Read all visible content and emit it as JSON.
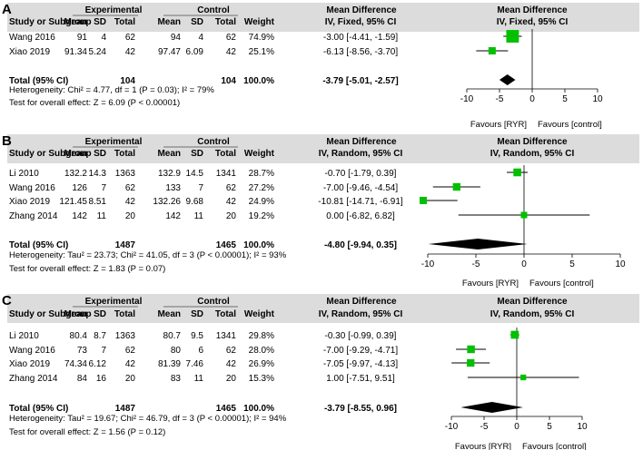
{
  "chart_data": [
    {
      "type": "forest",
      "panel_label": "A",
      "model": "Fixed",
      "headers": {
        "study": "Study or Subgroup",
        "group_exp": "Experimental",
        "group_ctl": "Control",
        "mean": "Mean",
        "sd": "SD",
        "total": "Total",
        "weight": "Weight",
        "md_title": "Mean Difference",
        "md_sub": "IV, Fixed, 95% CI",
        "plot_title": "Mean Difference",
        "plot_sub": "IV, Fixed, 95% CI"
      },
      "studies": [
        {
          "name": "Wang 2016",
          "exp_mean": "91",
          "exp_sd": "4",
          "exp_total": "62",
          "ctl_mean": "94",
          "ctl_sd": "4",
          "ctl_total": "62",
          "weight": "74.9%",
          "ci_text": "-3.00 [-4.41, -1.59]",
          "md": -3.0,
          "lo": -4.41,
          "hi": -1.59,
          "w": 74.9
        },
        {
          "name": "Xiao 2019",
          "exp_mean": "91.34",
          "exp_sd": "5.24",
          "exp_total": "42",
          "ctl_mean": "97.47",
          "ctl_sd": "6.09",
          "ctl_total": "42",
          "weight": "25.1%",
          "ci_text": "-6.13 [-8.56, -3.70]",
          "md": -6.13,
          "lo": -8.56,
          "hi": -3.7,
          "w": 25.1
        }
      ],
      "total": {
        "label": "Total (95% CI)",
        "exp_total": "104",
        "ctl_total": "104",
        "weight": "100.0%",
        "ci_text": "-3.79 [-5.01, -2.57]",
        "md": -3.79,
        "lo": -5.01,
        "hi": -2.57
      },
      "heterogeneity": "Heterogeneity: Chi² = 4.77, df = 1 (P = 0.03); I² = 79%",
      "overall_test": "Test for overall effect: Z = 6.09 (P < 0.00001)",
      "axis": {
        "min": -10,
        "max": 10,
        "ticks": [
          -10,
          -5,
          0,
          5,
          10
        ],
        "tick_labels": [
          "-10",
          "-5",
          "0",
          "5",
          "10"
        ]
      },
      "favours_left": "Favours [RYR]",
      "favours_right": "Favours [control]"
    },
    {
      "type": "forest",
      "panel_label": "B",
      "model": "Random",
      "headers": {
        "study": "Study or Subgroup",
        "group_exp": "Experimental",
        "group_ctl": "Control",
        "mean": "Mean",
        "sd": "SD",
        "total": "Total",
        "weight": "Weight",
        "md_title": "Mean Difference",
        "md_sub": "IV, Random, 95% CI",
        "plot_title": "Mean Difference",
        "plot_sub": "IV, Random, 95% CI"
      },
      "studies": [
        {
          "name": "Li 2010",
          "exp_mean": "132.2",
          "exp_sd": "14.3",
          "exp_total": "1363",
          "ctl_mean": "132.9",
          "ctl_sd": "14.5",
          "ctl_total": "1341",
          "weight": "28.7%",
          "ci_text": "-0.70 [-1.79, 0.39]",
          "md": -0.7,
          "lo": -1.79,
          "hi": 0.39,
          "w": 28.7
        },
        {
          "name": "Wang 2016",
          "exp_mean": "126",
          "exp_sd": "7",
          "exp_total": "62",
          "ctl_mean": "133",
          "ctl_sd": "7",
          "ctl_total": "62",
          "weight": "27.2%",
          "ci_text": "-7.00 [-9.46, -4.54]",
          "md": -7.0,
          "lo": -9.46,
          "hi": -4.54,
          "w": 27.2
        },
        {
          "name": "Xiao 2019",
          "exp_mean": "121.45",
          "exp_sd": "8.51",
          "exp_total": "42",
          "ctl_mean": "132.26",
          "ctl_sd": "9.68",
          "ctl_total": "42",
          "weight": "24.9%",
          "ci_text": "-10.81 [-14.71, -6.91]",
          "md": -10.81,
          "lo": -14.71,
          "hi": -6.91,
          "w": 24.9
        },
        {
          "name": "Zhang 2014",
          "exp_mean": "142",
          "exp_sd": "11",
          "exp_total": "20",
          "ctl_mean": "142",
          "ctl_sd": "11",
          "ctl_total": "20",
          "weight": "19.2%",
          "ci_text": "0.00 [-6.82, 6.82]",
          "md": 0.0,
          "lo": -6.82,
          "hi": 6.82,
          "w": 19.2
        }
      ],
      "total": {
        "label": "Total (95% CI)",
        "exp_total": "1487",
        "ctl_total": "1465",
        "weight": "100.0%",
        "ci_text": "-4.80 [-9.94, 0.35]",
        "md": -4.8,
        "lo": -9.94,
        "hi": 0.35
      },
      "heterogeneity": "Heterogeneity: Tau² = 23.73; Chi² = 41.05, df = 3 (P < 0.00001); I² = 93%",
      "overall_test": "Test for overall effect: Z = 1.83 (P = 0.07)",
      "axis": {
        "min": -10,
        "max": 10,
        "ticks": [
          -10,
          -5,
          0,
          5,
          10
        ],
        "tick_labels": [
          "-10",
          "-5",
          "0",
          "5",
          "10"
        ]
      },
      "favours_left": "Favours [RYR]",
      "favours_right": "Favours [control]"
    },
    {
      "type": "forest",
      "panel_label": "C",
      "model": "Random",
      "headers": {
        "study": "Study or Subgroup",
        "group_exp": "Experimental",
        "group_ctl": "Control",
        "mean": "Mean",
        "sd": "SD",
        "total": "Total",
        "weight": "Weight",
        "md_title": "Mean Difference",
        "md_sub": "IV, Random, 95% CI",
        "plot_title": "Mean Difference",
        "plot_sub": "IV, Random, 95% CI"
      },
      "studies": [
        {
          "name": "Li 2010",
          "exp_mean": "80.4",
          "exp_sd": "8.7",
          "exp_total": "1363",
          "ctl_mean": "80.7",
          "ctl_sd": "9.5",
          "ctl_total": "1341",
          "weight": "29.8%",
          "ci_text": "-0.30 [-0.99, 0.39]",
          "md": -0.3,
          "lo": -0.99,
          "hi": 0.39,
          "w": 29.8
        },
        {
          "name": "Wang 2016",
          "exp_mean": "73",
          "exp_sd": "7",
          "exp_total": "62",
          "ctl_mean": "80",
          "ctl_sd": "6",
          "ctl_total": "62",
          "weight": "28.0%",
          "ci_text": "-7.00 [-9.29, -4.71]",
          "md": -7.0,
          "lo": -9.29,
          "hi": -4.71,
          "w": 28.0
        },
        {
          "name": "Xiao 2019",
          "exp_mean": "74.34",
          "exp_sd": "6.12",
          "exp_total": "42",
          "ctl_mean": "81.39",
          "ctl_sd": "7.46",
          "ctl_total": "42",
          "weight": "26.9%",
          "ci_text": "-7.05 [-9.97, -4.13]",
          "md": -7.05,
          "lo": -9.97,
          "hi": -4.13,
          "w": 26.9
        },
        {
          "name": "Zhang 2014",
          "exp_mean": "84",
          "exp_sd": "16",
          "exp_total": "20",
          "ctl_mean": "83",
          "ctl_sd": "11",
          "ctl_total": "20",
          "weight": "15.3%",
          "ci_text": "1.00 [-7.51, 9.51]",
          "md": 1.0,
          "lo": -7.51,
          "hi": 9.51,
          "w": 15.3
        }
      ],
      "total": {
        "label": "Total (95% CI)",
        "exp_total": "1487",
        "ctl_total": "1465",
        "weight": "100.0%",
        "ci_text": "-3.79 [-8.55, 0.96]",
        "md": -3.79,
        "lo": -8.55,
        "hi": 0.96
      },
      "heterogeneity": "Heterogeneity: Tau² = 19.67; Chi² = 46.79, df = 3 (P < 0.00001); I² = 94%",
      "overall_test": "Test for overall effect: Z = 1.56 (P = 0.12)",
      "axis": {
        "min": -10,
        "max": 10,
        "ticks": [
          -10,
          -5,
          0,
          5,
          10
        ],
        "tick_labels": [
          "-10",
          "-5",
          "0",
          "5",
          "10"
        ]
      },
      "favours_left": "Favours [RYR]",
      "favours_right": "Favours [control]"
    }
  ],
  "colors": {
    "header_bg": "#dcdcdc",
    "marker": "#00c000",
    "line": "#000000",
    "text": "#000000"
  }
}
